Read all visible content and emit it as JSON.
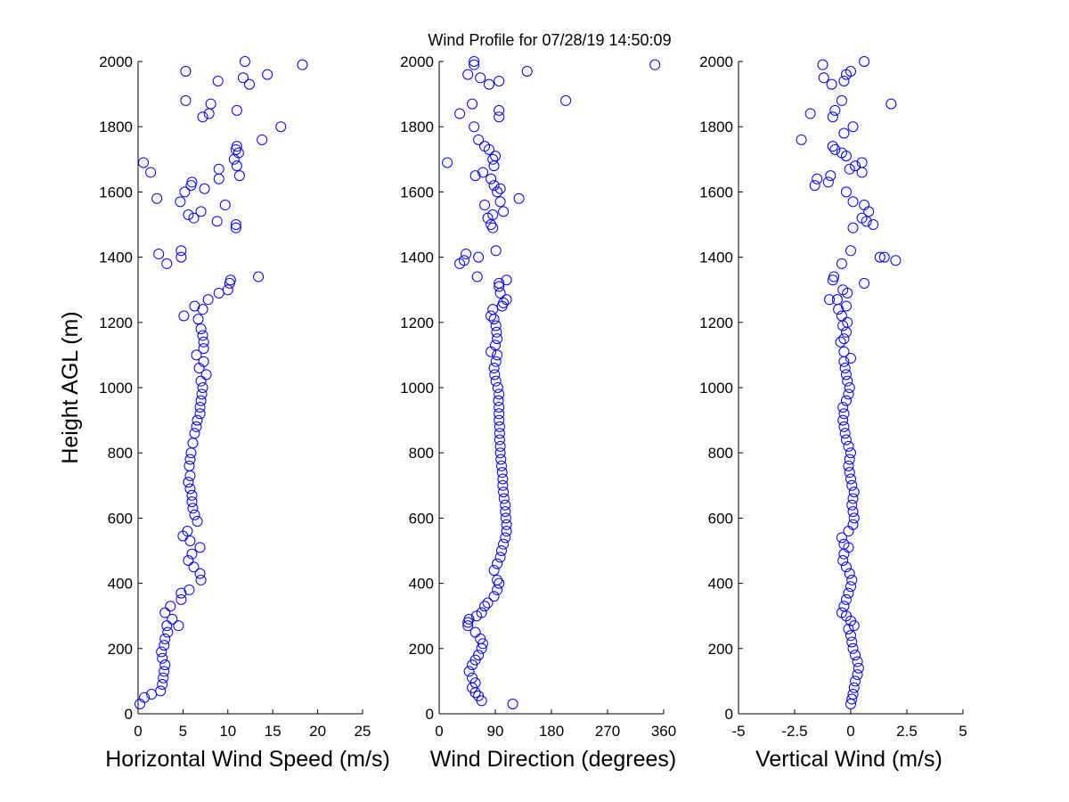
{
  "figure": {
    "title": "Wind Profile for  07/28/19 14:50:09"
  },
  "colors": {
    "marker": "#0000ff",
    "axis": "#000000",
    "background": "#ffffff"
  },
  "chart_data": [
    {
      "type": "scatter",
      "marker": "open-circle",
      "xlabel": "Horizontal Wind Speed (m/s)",
      "ylabel": "Height AGL (m)",
      "xlim": [
        0,
        25
      ],
      "ylim": [
        0,
        2000
      ],
      "xticks": [
        "0",
        "5",
        "10",
        "15",
        "20",
        "25"
      ],
      "yticks": [
        "0",
        "200",
        "400",
        "600",
        "800",
        "1000",
        "1200",
        "1400",
        "1600",
        "1800",
        "2000"
      ],
      "grid": false,
      "points": [
        [
          0.2,
          30
        ],
        [
          0.7,
          50
        ],
        [
          1.5,
          60
        ],
        [
          2.5,
          70
        ],
        [
          2.7,
          90
        ],
        [
          2.8,
          110
        ],
        [
          2.9,
          130
        ],
        [
          3.0,
          150
        ],
        [
          2.7,
          170
        ],
        [
          2.6,
          190
        ],
        [
          2.9,
          210
        ],
        [
          3.0,
          230
        ],
        [
          3.3,
          250
        ],
        [
          3.2,
          270
        ],
        [
          4.5,
          270
        ],
        [
          3.8,
          290
        ],
        [
          3.0,
          310
        ],
        [
          3.6,
          330
        ],
        [
          4.8,
          350
        ],
        [
          4.8,
          370
        ],
        [
          5.7,
          380
        ],
        [
          7.0,
          410
        ],
        [
          6.9,
          430
        ],
        [
          6.2,
          450
        ],
        [
          5.6,
          470
        ],
        [
          6.0,
          490
        ],
        [
          6.9,
          510
        ],
        [
          5.8,
          530
        ],
        [
          5.0,
          545
        ],
        [
          5.5,
          560
        ],
        [
          6.6,
          590
        ],
        [
          6.3,
          610
        ],
        [
          6.1,
          630
        ],
        [
          6.0,
          650
        ],
        [
          6.0,
          670
        ],
        [
          5.8,
          690
        ],
        [
          5.6,
          710
        ],
        [
          5.8,
          730
        ],
        [
          5.7,
          760
        ],
        [
          5.8,
          780
        ],
        [
          5.9,
          800
        ],
        [
          6.1,
          830
        ],
        [
          6.3,
          860
        ],
        [
          6.5,
          880
        ],
        [
          6.6,
          900
        ],
        [
          6.9,
          920
        ],
        [
          6.9,
          940
        ],
        [
          7.0,
          960
        ],
        [
          7.1,
          980
        ],
        [
          7.2,
          1000
        ],
        [
          7.0,
          1020
        ],
        [
          7.6,
          1040
        ],
        [
          6.8,
          1060
        ],
        [
          7.3,
          1080
        ],
        [
          6.5,
          1100
        ],
        [
          7.3,
          1120
        ],
        [
          7.3,
          1140
        ],
        [
          7.2,
          1160
        ],
        [
          7.0,
          1180
        ],
        [
          6.7,
          1210
        ],
        [
          5.1,
          1220
        ],
        [
          7.2,
          1240
        ],
        [
          6.3,
          1250
        ],
        [
          7.8,
          1270
        ],
        [
          9.0,
          1290
        ],
        [
          10.0,
          1300
        ],
        [
          10.2,
          1320
        ],
        [
          10.3,
          1330
        ],
        [
          13.4,
          1340
        ],
        [
          3.2,
          1380
        ],
        [
          4.8,
          1400
        ],
        [
          2.3,
          1410
        ],
        [
          4.8,
          1420
        ],
        [
          10.9,
          1490
        ],
        [
          10.9,
          1500
        ],
        [
          8.8,
          1510
        ],
        [
          6.2,
          1520
        ],
        [
          5.6,
          1530
        ],
        [
          7.0,
          1540
        ],
        [
          9.7,
          1560
        ],
        [
          4.7,
          1570
        ],
        [
          2.1,
          1580
        ],
        [
          5.2,
          1600
        ],
        [
          7.4,
          1610
        ],
        [
          5.9,
          1620
        ],
        [
          6.0,
          1630
        ],
        [
          9.0,
          1640
        ],
        [
          11.3,
          1650
        ],
        [
          1.4,
          1660
        ],
        [
          9.0,
          1670
        ],
        [
          11.0,
          1680
        ],
        [
          0.6,
          1690
        ],
        [
          10.7,
          1700
        ],
        [
          11.2,
          1720
        ],
        [
          10.9,
          1730
        ],
        [
          11.0,
          1740
        ],
        [
          13.8,
          1760
        ],
        [
          15.9,
          1800
        ],
        [
          7.2,
          1830
        ],
        [
          7.9,
          1840
        ],
        [
          11.0,
          1850
        ],
        [
          8.1,
          1870
        ],
        [
          5.3,
          1880
        ],
        [
          12.4,
          1930
        ],
        [
          8.9,
          1940
        ],
        [
          11.7,
          1950
        ],
        [
          14.4,
          1960
        ],
        [
          5.3,
          1970
        ],
        [
          18.3,
          1990
        ],
        [
          11.9,
          2000
        ]
      ]
    },
    {
      "type": "scatter",
      "marker": "open-circle",
      "xlabel": "Wind Direction (degrees)",
      "ylabel": "",
      "xlim": [
        0,
        360
      ],
      "ylim": [
        0,
        2000
      ],
      "xticks": [
        "0",
        "90",
        "180",
        "270",
        "360"
      ],
      "yticks": [
        "0",
        "200",
        "400",
        "600",
        "800",
        "1000",
        "1200",
        "1400",
        "1600",
        "1800",
        "2000"
      ],
      "grid": false,
      "points": [
        [
          118,
          30
        ],
        [
          68,
          40
        ],
        [
          63,
          55
        ],
        [
          58,
          65
        ],
        [
          53,
          80
        ],
        [
          58,
          95
        ],
        [
          53,
          110
        ],
        [
          48,
          130
        ],
        [
          53,
          150
        ],
        [
          58,
          165
        ],
        [
          63,
          180
        ],
        [
          68,
          200
        ],
        [
          70,
          215
        ],
        [
          66,
          230
        ],
        [
          58,
          250
        ],
        [
          46,
          270
        ],
        [
          46,
          280
        ],
        [
          48,
          290
        ],
        [
          60,
          300
        ],
        [
          68,
          310
        ],
        [
          73,
          330
        ],
        [
          78,
          340
        ],
        [
          88,
          360
        ],
        [
          93,
          380
        ],
        [
          96,
          400
        ],
        [
          93,
          410
        ],
        [
          88,
          440
        ],
        [
          93,
          460
        ],
        [
          98,
          480
        ],
        [
          100,
          500
        ],
        [
          103,
          520
        ],
        [
          106,
          540
        ],
        [
          108,
          560
        ],
        [
          108,
          580
        ],
        [
          107,
          600
        ],
        [
          106,
          620
        ],
        [
          106,
          640
        ],
        [
          104,
          660
        ],
        [
          103,
          680
        ],
        [
          102,
          700
        ],
        [
          102,
          720
        ],
        [
          101,
          740
        ],
        [
          100,
          760
        ],
        [
          99,
          780
        ],
        [
          98,
          800
        ],
        [
          98,
          820
        ],
        [
          97,
          840
        ],
        [
          97,
          860
        ],
        [
          97,
          880
        ],
        [
          96,
          900
        ],
        [
          96,
          920
        ],
        [
          96,
          940
        ],
        [
          95,
          960
        ],
        [
          96,
          980
        ],
        [
          94,
          1000
        ],
        [
          91,
          1020
        ],
        [
          89,
          1040
        ],
        [
          88,
          1060
        ],
        [
          91,
          1080
        ],
        [
          93,
          1100
        ],
        [
          83,
          1110
        ],
        [
          90,
          1130
        ],
        [
          93,
          1150
        ],
        [
          92,
          1170
        ],
        [
          91,
          1190
        ],
        [
          88,
          1210
        ],
        [
          83,
          1220
        ],
        [
          86,
          1240
        ],
        [
          101,
          1250
        ],
        [
          103,
          1260
        ],
        [
          108,
          1270
        ],
        [
          98,
          1290
        ],
        [
          96,
          1310
        ],
        [
          96,
          1320
        ],
        [
          108,
          1330
        ],
        [
          61,
          1340
        ],
        [
          33,
          1380
        ],
        [
          40,
          1390
        ],
        [
          43,
          1410
        ],
        [
          63,
          1400
        ],
        [
          91,
          1420
        ],
        [
          86,
          1490
        ],
        [
          83,
          1500
        ],
        [
          78,
          1520
        ],
        [
          86,
          1530
        ],
        [
          103,
          1540
        ],
        [
          73,
          1560
        ],
        [
          98,
          1570
        ],
        [
          128,
          1580
        ],
        [
          93,
          1600
        ],
        [
          98,
          1610
        ],
        [
          88,
          1620
        ],
        [
          83,
          1640
        ],
        [
          58,
          1650
        ],
        [
          70,
          1660
        ],
        [
          88,
          1680
        ],
        [
          13,
          1690
        ],
        [
          86,
          1700
        ],
        [
          90,
          1710
        ],
        [
          80,
          1730
        ],
        [
          73,
          1740
        ],
        [
          63,
          1760
        ],
        [
          56,
          1800
        ],
        [
          96,
          1830
        ],
        [
          96,
          1850
        ],
        [
          33,
          1840
        ],
        [
          53,
          1870
        ],
        [
          203,
          1880
        ],
        [
          80,
          1930
        ],
        [
          66,
          1950
        ],
        [
          96,
          1940
        ],
        [
          46,
          1960
        ],
        [
          141,
          1970
        ],
        [
          56,
          1990
        ],
        [
          346,
          1990
        ],
        [
          56,
          2000
        ]
      ]
    },
    {
      "type": "scatter",
      "marker": "open-circle",
      "xlabel": "Vertical Wind (m/s)",
      "ylabel": "",
      "xlim": [
        -5,
        5
      ],
      "ylim": [
        0,
        2000
      ],
      "xticks": [
        "-5",
        "-2.5",
        "0",
        "2.5",
        "5"
      ],
      "yticks": [
        "0",
        "200",
        "400",
        "600",
        "800",
        "1000",
        "1200",
        "1400",
        "1600",
        "1800",
        "2000"
      ],
      "grid": false,
      "points": [
        [
          0.0,
          30
        ],
        [
          0.05,
          45
        ],
        [
          0.1,
          60
        ],
        [
          0.15,
          80
        ],
        [
          0.2,
          100
        ],
        [
          0.3,
          120
        ],
        [
          0.35,
          140
        ],
        [
          0.3,
          160
        ],
        [
          0.2,
          180
        ],
        [
          0.1,
          200
        ],
        [
          0.05,
          220
        ],
        [
          0.0,
          240
        ],
        [
          -0.1,
          260
        ],
        [
          0.15,
          270
        ],
        [
          0.0,
          285
        ],
        [
          -0.2,
          300
        ],
        [
          -0.4,
          310
        ],
        [
          -0.3,
          330
        ],
        [
          -0.2,
          350
        ],
        [
          -0.1,
          370
        ],
        [
          0.0,
          390
        ],
        [
          0.05,
          410
        ],
        [
          -0.05,
          430
        ],
        [
          -0.2,
          450
        ],
        [
          -0.35,
          470
        ],
        [
          -0.3,
          490
        ],
        [
          -0.1,
          510
        ],
        [
          -0.3,
          520
        ],
        [
          -0.4,
          540
        ],
        [
          -0.1,
          560
        ],
        [
          0.1,
          580
        ],
        [
          0.15,
          600
        ],
        [
          0.1,
          620
        ],
        [
          0.05,
          640
        ],
        [
          0.1,
          660
        ],
        [
          0.15,
          680
        ],
        [
          0.05,
          700
        ],
        [
          0.0,
          720
        ],
        [
          -0.05,
          740
        ],
        [
          -0.1,
          760
        ],
        [
          -0.05,
          780
        ],
        [
          0.0,
          800
        ],
        [
          -0.1,
          820
        ],
        [
          -0.2,
          840
        ],
        [
          -0.25,
          860
        ],
        [
          -0.3,
          880
        ],
        [
          -0.35,
          900
        ],
        [
          -0.3,
          920
        ],
        [
          -0.35,
          940
        ],
        [
          -0.2,
          960
        ],
        [
          -0.1,
          980
        ],
        [
          -0.05,
          1000
        ],
        [
          -0.15,
          1020
        ],
        [
          -0.2,
          1040
        ],
        [
          -0.25,
          1060
        ],
        [
          -0.3,
          1080
        ],
        [
          0.0,
          1090
        ],
        [
          -0.3,
          1110
        ],
        [
          -0.45,
          1140
        ],
        [
          -0.3,
          1150
        ],
        [
          -0.2,
          1170
        ],
        [
          -0.35,
          1190
        ],
        [
          -0.15,
          1200
        ],
        [
          -0.4,
          1220
        ],
        [
          -0.55,
          1240
        ],
        [
          -0.2,
          1250
        ],
        [
          -0.6,
          1270
        ],
        [
          -0.95,
          1270
        ],
        [
          -0.15,
          1290
        ],
        [
          -0.35,
          1300
        ],
        [
          0.6,
          1320
        ],
        [
          -0.8,
          1330
        ],
        [
          -0.75,
          1340
        ],
        [
          -0.4,
          1380
        ],
        [
          1.3,
          1400
        ],
        [
          1.5,
          1400
        ],
        [
          2.0,
          1390
        ],
        [
          0.0,
          1420
        ],
        [
          0.1,
          1490
        ],
        [
          1.0,
          1500
        ],
        [
          0.7,
          1510
        ],
        [
          0.5,
          1520
        ],
        [
          0.8,
          1540
        ],
        [
          0.6,
          1560
        ],
        [
          0.1,
          1570
        ],
        [
          -0.2,
          1600
        ],
        [
          -1.6,
          1620
        ],
        [
          -1.0,
          1630
        ],
        [
          -1.5,
          1640
        ],
        [
          -0.9,
          1650
        ],
        [
          0.5,
          1660
        ],
        [
          -0.05,
          1670
        ],
        [
          0.2,
          1680
        ],
        [
          0.5,
          1690
        ],
        [
          -0.2,
          1710
        ],
        [
          -0.4,
          1720
        ],
        [
          -0.7,
          1730
        ],
        [
          -0.8,
          1740
        ],
        [
          -2.2,
          1760
        ],
        [
          -0.3,
          1780
        ],
        [
          0.1,
          1800
        ],
        [
          1.8,
          1870
        ],
        [
          -0.8,
          1830
        ],
        [
          -0.7,
          1850
        ],
        [
          -1.8,
          1840
        ],
        [
          -0.4,
          1880
        ],
        [
          -0.85,
          1930
        ],
        [
          -0.3,
          1940
        ],
        [
          -1.2,
          1950
        ],
        [
          -0.2,
          1960
        ],
        [
          0.0,
          1970
        ],
        [
          -1.25,
          1990
        ],
        [
          0.6,
          2000
        ]
      ]
    }
  ]
}
